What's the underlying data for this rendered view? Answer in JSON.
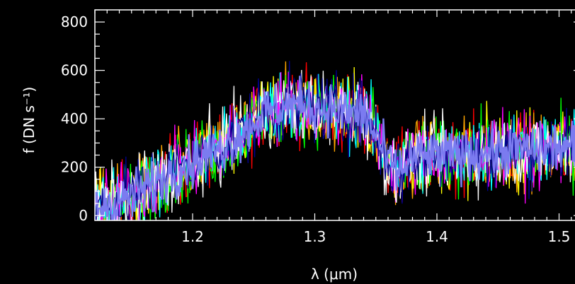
{
  "chart_data": {
    "type": "line",
    "title": "",
    "xlabel": "λ (μm)",
    "ylabel": "f (DN s⁻¹)",
    "xlim": [
      1.12,
      1.52
    ],
    "ylim": [
      -20,
      850
    ],
    "xticks": [
      "1.2",
      "1.3",
      "1.4",
      "1.5"
    ],
    "yticks": [
      "0",
      "200",
      "400",
      "600",
      "800"
    ],
    "grid": false,
    "background": "#000000",
    "axis_color": "#ffffff",
    "series_colors": [
      "#ff0000",
      "#ffa500",
      "#ffff00",
      "#00ff00",
      "#00ffff",
      "#ff00ff",
      "#ffffff",
      "#00008b",
      "#7b7bf0"
    ],
    "envelope": {
      "x": [
        1.12,
        1.14,
        1.16,
        1.18,
        1.2,
        1.22,
        1.24,
        1.26,
        1.28,
        1.3,
        1.32,
        1.34,
        1.35,
        1.36,
        1.37,
        1.38,
        1.4,
        1.42,
        1.44,
        1.46,
        1.48,
        1.5,
        1.52
      ],
      "y": [
        30,
        60,
        110,
        170,
        220,
        270,
        340,
        430,
        460,
        450,
        430,
        420,
        330,
        220,
        180,
        240,
        250,
        250,
        260,
        270,
        270,
        280,
        280
      ]
    },
    "noise": 140
  }
}
